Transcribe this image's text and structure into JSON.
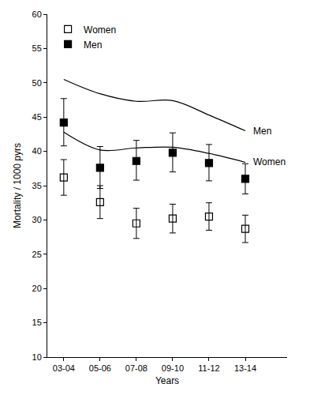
{
  "chart_data": {
    "type": "scatter",
    "x_label": "Years",
    "y_label": "Mortality / 1000 pyrs",
    "categories": [
      "03-04",
      "05-06",
      "07-08",
      "09-10",
      "11-12",
      "13-14"
    ],
    "ylim": [
      10,
      60
    ],
    "yticks": [
      10,
      15,
      20,
      25,
      30,
      35,
      40,
      45,
      50,
      55,
      60
    ],
    "grid": false,
    "legend": "top-left",
    "series": [
      {
        "name": "Women",
        "type": "scatter",
        "marker": "square-open",
        "color": "#000000",
        "values": [
          36.2,
          32.6,
          29.5,
          30.2,
          30.5,
          28.7
        ],
        "ci_low": [
          33.6,
          30.2,
          27.3,
          28.1,
          28.5,
          26.7
        ],
        "ci_high": [
          38.8,
          35.0,
          31.7,
          32.3,
          32.5,
          30.7
        ]
      },
      {
        "name": "Men",
        "type": "scatter",
        "marker": "square",
        "color": "#000000",
        "values": [
          44.2,
          37.6,
          38.6,
          39.8,
          38.3,
          36.0
        ],
        "ci_low": [
          40.8,
          34.6,
          35.8,
          37.0,
          35.7,
          33.8
        ],
        "ci_high": [
          47.7,
          40.7,
          41.6,
          42.7,
          41.0,
          38.2
        ]
      },
      {
        "name": "Men",
        "type": "line",
        "line_style": "solid",
        "color": "#000000",
        "values": [
          50.5,
          48.4,
          47.3,
          47.4,
          45.3,
          43.0
        ]
      },
      {
        "name": "Women",
        "type": "line",
        "line_style": "solid",
        "color": "#000000",
        "values": [
          42.8,
          40.2,
          40.5,
          40.6,
          39.7,
          38.4
        ]
      }
    ]
  }
}
